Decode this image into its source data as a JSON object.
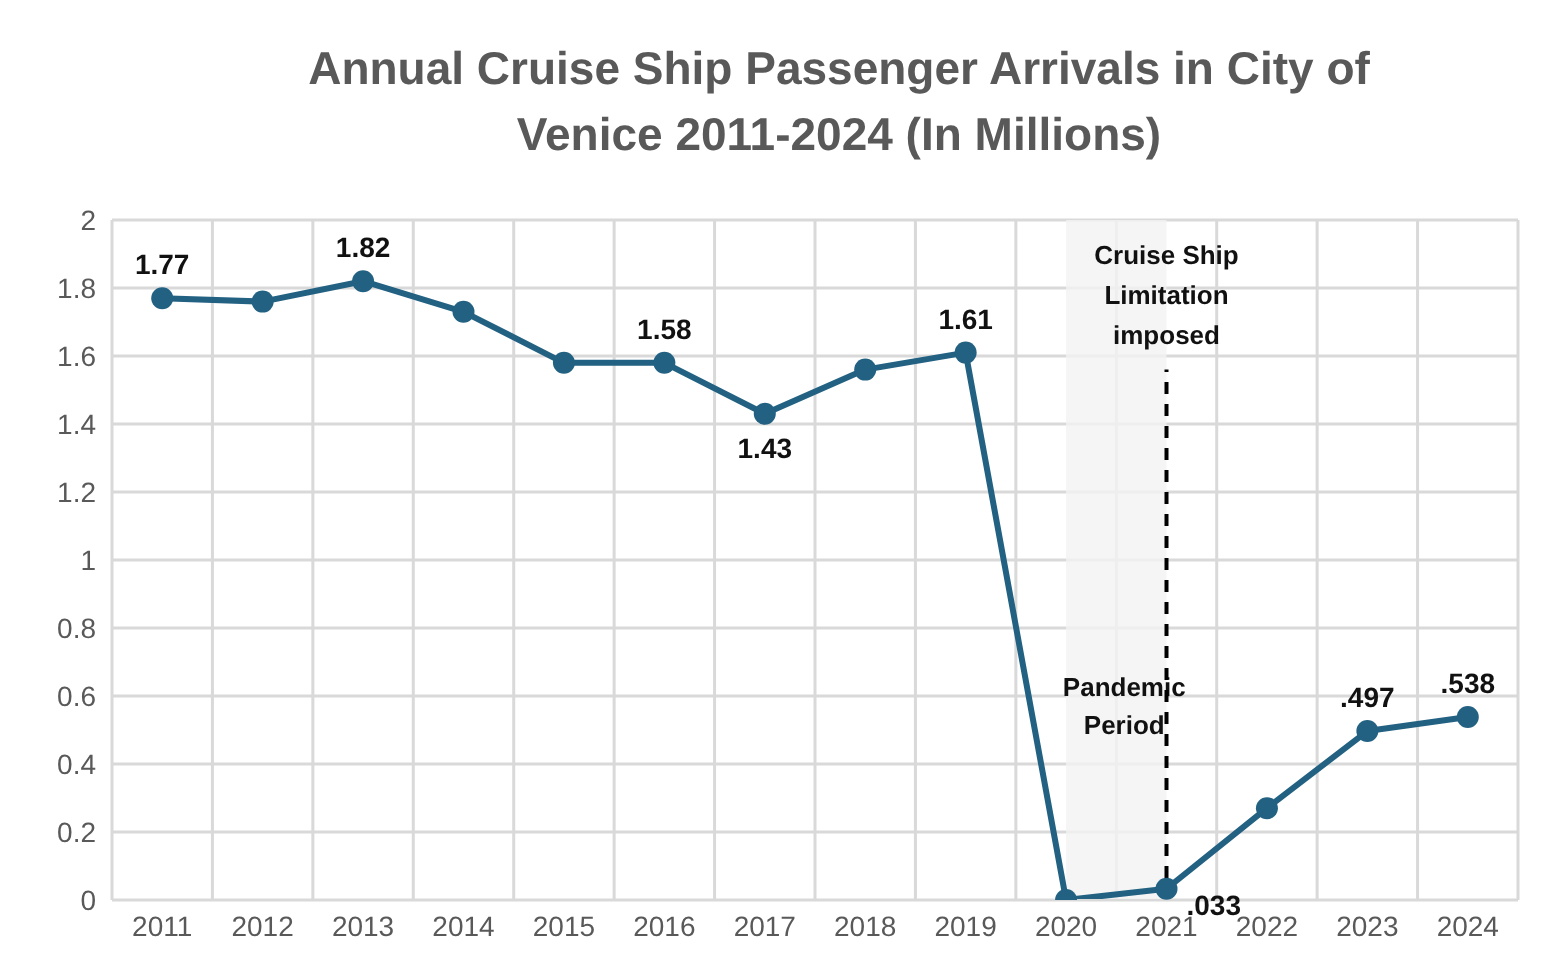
{
  "chart_data": {
    "type": "line",
    "title": "Annual Cruise Ship Passenger Arrivals in City of Venice 2011-2024 (In Millions)",
    "categories": [
      "2011",
      "2012",
      "2013",
      "2014",
      "2015",
      "2016",
      "2017",
      "2018",
      "2019",
      "2020",
      "2021",
      "2022",
      "2023",
      "2024"
    ],
    "series": [
      {
        "color": "#226182",
        "values": [
          1.77,
          1.76,
          1.82,
          1.73,
          1.58,
          1.58,
          1.43,
          1.56,
          1.61,
          0,
          0.033,
          0.27,
          0.497,
          0.538
        ],
        "value_labels": [
          "1.77",
          null,
          "1.82",
          null,
          null,
          "1.58",
          "1.43",
          null,
          "1.61",
          null,
          ".033",
          null,
          ".497",
          ".538"
        ]
      }
    ],
    "ylim": [
      0,
      2
    ],
    "yticks": [
      0,
      0.2,
      0.4,
      0.6,
      0.8,
      1,
      1.2,
      1.4,
      1.6,
      1.8,
      2
    ],
    "grid": true,
    "marker": "circle",
    "line_style": "solid",
    "ref_lines": [
      {
        "axis": "x",
        "value": "2021",
        "label": "Cruise Ship Limitation imposed",
        "color": "#000000",
        "line_style": "dashed"
      }
    ],
    "bands": [
      {
        "axis": "x",
        "from": "2020",
        "to": "2021",
        "label": "Pandemic Period",
        "color": "#f2f2f2"
      }
    ]
  }
}
